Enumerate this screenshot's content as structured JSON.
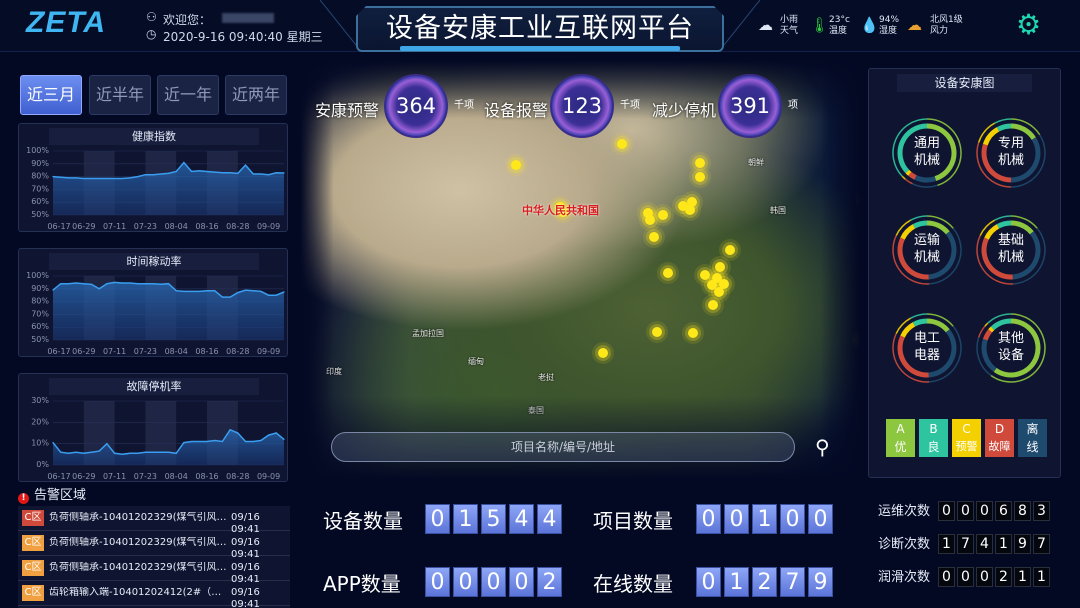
{
  "header": {
    "logo": "ZETA",
    "welcome": "欢迎您：",
    "datetime": "2020-9-16 09:40:40 星期三",
    "title": "设备安康工业互联网平台",
    "weather": {
      "condition": "小雨",
      "condition_label": "天气",
      "temperature": "23°c",
      "temperature_label": "温度",
      "humidity": "94%",
      "humidity_label": "湿度",
      "wind": "北风1级",
      "wind_label": "风力"
    }
  },
  "ranges": [
    {
      "label": "近三月",
      "active": true
    },
    {
      "label": "近半年"
    },
    {
      "label": "近一年"
    },
    {
      "label": "近两年"
    }
  ],
  "chart_data": [
    {
      "type": "area",
      "title": "健康指数",
      "x": [
        "06-17",
        "06-20",
        "06-23",
        "06-26",
        "06-29",
        "07-02",
        "07-05",
        "07-08",
        "07-11",
        "07-14",
        "07-17",
        "07-20",
        "07-23",
        "07-26",
        "07-29",
        "08-01",
        "08-04",
        "08-07",
        "08-10",
        "08-13",
        "08-16",
        "08-19",
        "08-22",
        "08-25",
        "08-28",
        "08-31",
        "09-03",
        "09-06",
        "09-09",
        "09-12",
        "09-15"
      ],
      "values": [
        80,
        79.5,
        79,
        79,
        78.5,
        78.5,
        78.5,
        78.5,
        78.5,
        78.5,
        79,
        80,
        81.5,
        81.5,
        82,
        82.5,
        84,
        91,
        84,
        84.5,
        84,
        83.5,
        83,
        83,
        82.5,
        89,
        82,
        82,
        81.5,
        83,
        82.8
      ],
      "xticks": [
        "06-17",
        "06-29",
        "07-11",
        "07-23",
        "08-04",
        "08-16",
        "08-28",
        "09-09"
      ],
      "ylim": [
        50,
        100
      ],
      "yticks": [
        "50%",
        "60%",
        "70%",
        "80%",
        "90%",
        "100%"
      ],
      "color": "#3a9ef0"
    },
    {
      "type": "area",
      "title": "时间稼动率",
      "x": [
        "06-17",
        "06-20",
        "06-23",
        "06-26",
        "06-29",
        "07-02",
        "07-05",
        "07-08",
        "07-11",
        "07-14",
        "07-17",
        "07-20",
        "07-23",
        "07-26",
        "07-29",
        "08-01",
        "08-04",
        "08-07",
        "08-10",
        "08-13",
        "08-16",
        "08-19",
        "08-22",
        "08-25",
        "08-28",
        "08-31",
        "09-03",
        "09-06",
        "09-09",
        "09-12",
        "09-15"
      ],
      "values": [
        89,
        94,
        94,
        94.5,
        94,
        93.5,
        90,
        94,
        95,
        94.5,
        94.5,
        94,
        94,
        94,
        93.5,
        94,
        88.5,
        88,
        88,
        88,
        88.5,
        88.5,
        83.5,
        83.5,
        87,
        89,
        88.5,
        88,
        85,
        85,
        87.5
      ],
      "xticks": [
        "06-17",
        "06-29",
        "07-11",
        "07-23",
        "08-04",
        "08-16",
        "08-28",
        "09-09"
      ],
      "ylim": [
        50,
        100
      ],
      "yticks": [
        "50%",
        "60%",
        "70%",
        "80%",
        "90%",
        "100%"
      ],
      "color": "#3a9ef0"
    },
    {
      "type": "area",
      "title": "故障停机率",
      "x": [
        "06-17",
        "06-20",
        "06-23",
        "06-26",
        "06-29",
        "07-02",
        "07-05",
        "07-08",
        "07-11",
        "07-14",
        "07-17",
        "07-20",
        "07-23",
        "07-26",
        "07-29",
        "08-01",
        "08-04",
        "08-07",
        "08-10",
        "08-13",
        "08-16",
        "08-19",
        "08-22",
        "08-25",
        "08-28",
        "08-31",
        "09-03",
        "09-06",
        "09-09",
        "09-12",
        "09-15"
      ],
      "values": [
        10.5,
        6,
        5.5,
        6,
        5.5,
        6,
        6.5,
        10,
        5.5,
        5,
        5.5,
        5.5,
        6,
        6,
        6,
        6,
        5.5,
        10.5,
        11,
        11,
        11,
        11.5,
        11,
        16.5,
        15,
        11,
        11,
        11.5,
        14,
        15,
        12
      ],
      "xticks": [
        "06-17",
        "06-29",
        "07-11",
        "07-23",
        "08-04",
        "08-16",
        "08-28",
        "09-09"
      ],
      "ylim": [
        0,
        30
      ],
      "yticks": [
        "0%",
        "10%",
        "20%",
        "30%"
      ],
      "color": "#3a9ef0"
    }
  ],
  "alerts": {
    "title": "告警区域",
    "items": [
      {
        "zone": "C区",
        "text": "负荷侧轴承-10401202329(煤气引风机电...",
        "time": "09/16 09:41",
        "level": "red"
      },
      {
        "zone": "C区",
        "text": "负荷侧轴承-10401202329(煤气引风机电...",
        "time": "09/16 09:41",
        "level": "orange"
      },
      {
        "zone": "C区",
        "text": "负荷侧轴承-10401202329(煤气引风机电...",
        "time": "09/16 09:41",
        "level": "orange"
      },
      {
        "zone": "C区",
        "text": "齿轮箱输入端-10401202412(2#（2V）...",
        "time": "09/16 09:41",
        "level": "orange"
      }
    ]
  },
  "kpis": [
    {
      "label": "安康预警",
      "value": "364",
      "unit": "千项"
    },
    {
      "label": "设备报警",
      "value": "123",
      "unit": "千项"
    },
    {
      "label": "减少停机",
      "value": "391",
      "unit": "项"
    }
  ],
  "map": {
    "country_label": "中华人民共和国",
    "labels": [
      "孟加拉国",
      "缅甸",
      "印度",
      "老挝",
      "泰国",
      "朝鲜",
      "韩国"
    ]
  },
  "search": {
    "placeholder": "项目名称/编号/地址"
  },
  "health_panel": {
    "title": "设备安康图",
    "categories": [
      {
        "key": "A",
        "label": "优",
        "color": "#8dc63f"
      },
      {
        "key": "B",
        "label": "良",
        "color": "#2ec4a0"
      },
      {
        "key": "C",
        "label": "预警",
        "color": "#f5d000"
      },
      {
        "key": "D",
        "label": "故障",
        "color": "#d04a3c"
      },
      {
        "key": "",
        "label": "离线",
        "color": "#1e4a6e"
      }
    ],
    "gauges": [
      {
        "line1": "通用",
        "line2": "机械",
        "shares": [
          0.45,
          0.37,
          0.02,
          0.04,
          0.12
        ]
      },
      {
        "line1": "专用",
        "line2": "机械",
        "shares": [
          0.16,
          0.08,
          0.12,
          0.3,
          0.34
        ]
      },
      {
        "line1": "运输",
        "line2": "机械",
        "shares": [
          0.14,
          0.08,
          0.1,
          0.33,
          0.35
        ]
      },
      {
        "line1": "基础",
        "line2": "机械",
        "shares": [
          0.14,
          0.08,
          0.1,
          0.33,
          0.35
        ]
      },
      {
        "line1": "电工",
        "line2": "电器",
        "shares": [
          0.14,
          0.08,
          0.1,
          0.33,
          0.35
        ]
      },
      {
        "line1": "其他",
        "line2": "设备",
        "shares": [
          0.6,
          0.12,
          0.02,
          0.06,
          0.2
        ]
      }
    ]
  },
  "counters": [
    {
      "label": "设备数量",
      "digits": "01544"
    },
    {
      "label": "项目数量",
      "digits": "00100"
    },
    {
      "label": "APP数量",
      "digits": "00002"
    },
    {
      "label": "在线数量",
      "digits": "01279"
    }
  ],
  "stats": [
    {
      "label": "运维次数",
      "digits": "000683"
    },
    {
      "label": "诊断次数",
      "digits": "174197"
    },
    {
      "label": "润滑次数",
      "digits": "000211"
    }
  ]
}
